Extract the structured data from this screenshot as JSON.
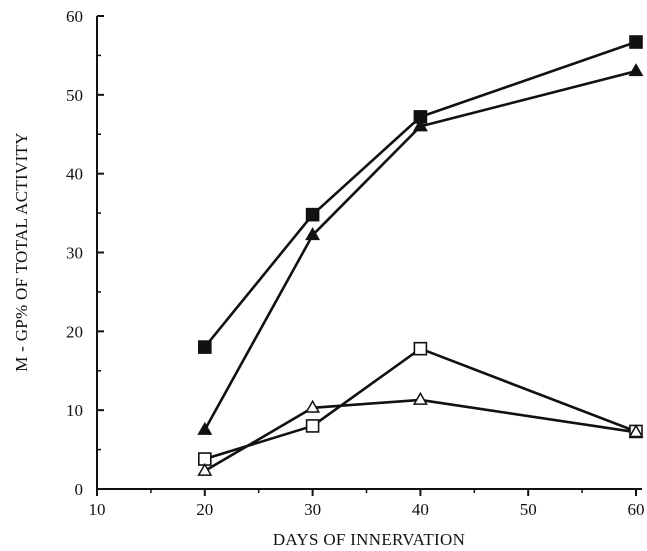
{
  "chart_data": {
    "type": "line",
    "title": "",
    "xlabel": "DAYS OF INNERVATION",
    "ylabel": "M - GP% OF TOTAL ACTIVITY",
    "xlim": [
      10,
      60
    ],
    "ylim": [
      0,
      60
    ],
    "x_ticks": [
      10,
      20,
      30,
      40,
      50,
      60
    ],
    "y_ticks": [
      0,
      10,
      20,
      30,
      40,
      50,
      60
    ],
    "grid": false,
    "legend": "none",
    "x": [
      20,
      30,
      40,
      60
    ],
    "series": [
      {
        "marker": "square-filled",
        "values": [
          18,
          34.8,
          47.2,
          56.7
        ]
      },
      {
        "marker": "triangle-filled",
        "values": [
          7.5,
          32.2,
          46,
          53
        ]
      },
      {
        "marker": "square-open",
        "values": [
          3.8,
          8,
          17.8,
          7.3
        ]
      },
      {
        "marker": "triangle-open",
        "values": [
          2.3,
          10.3,
          11.3,
          7.2
        ]
      }
    ],
    "colors": {
      "line": "#111111",
      "marker_fill": "#111111",
      "background": "#ffffff"
    }
  }
}
